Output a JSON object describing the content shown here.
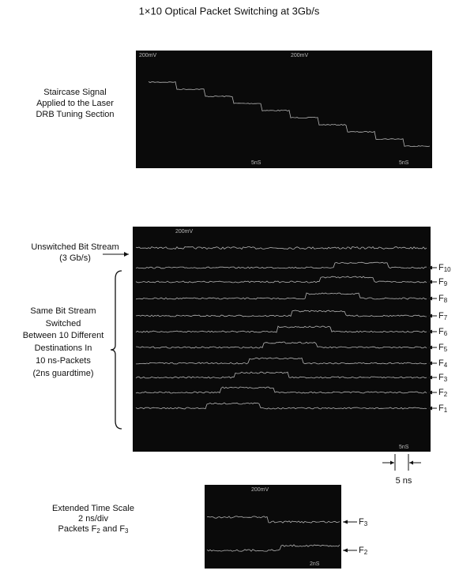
{
  "title": "1×10 Optical Packet Switching at 3Gb/s",
  "top_panel": {
    "label_lines": [
      "Staircase Signal",
      "Applied to the Laser",
      "DRB Tuning Section"
    ],
    "scope_labels": {
      "top_left": "200mV",
      "top_center": "200mV",
      "bottom_center": "5nS",
      "bottom_right": "5nS"
    }
  },
  "middle_panel": {
    "unswitched_label": [
      "Unswitched Bit Stream",
      "(3 Gb/s)"
    ],
    "switched_label": [
      "Same Bit Stream",
      "Switched",
      "Between 10 Different",
      "Destinations In",
      "10 ns-Packets",
      "(2ns guardtime)"
    ],
    "outputs": [
      {
        "letter": "F",
        "index": "10"
      },
      {
        "letter": "F",
        "index": "9"
      },
      {
        "letter": "F",
        "index": "8"
      },
      {
        "letter": "F",
        "index": "7"
      },
      {
        "letter": "F",
        "index": "6"
      },
      {
        "letter": "F",
        "index": "5"
      },
      {
        "letter": "F",
        "index": "4"
      },
      {
        "letter": "F",
        "index": "3"
      },
      {
        "letter": "F",
        "index": "2"
      },
      {
        "letter": "F",
        "index": "1"
      }
    ],
    "scope_labels": {
      "top_left": "200mV",
      "bottom_right": "5nS"
    },
    "scale_marker": "5 ns"
  },
  "bottom_panel": {
    "label_lines": [
      "Extended Time Scale",
      "2  ns/div"
    ],
    "packets_line": [
      "Packets F",
      "2",
      " and F",
      "3"
    ],
    "outputs": [
      {
        "letter": "F",
        "index": "3"
      },
      {
        "letter": "F",
        "index": "2"
      }
    ],
    "scope_labels": {
      "top": "200mV",
      "bottom": "2nS"
    }
  }
}
